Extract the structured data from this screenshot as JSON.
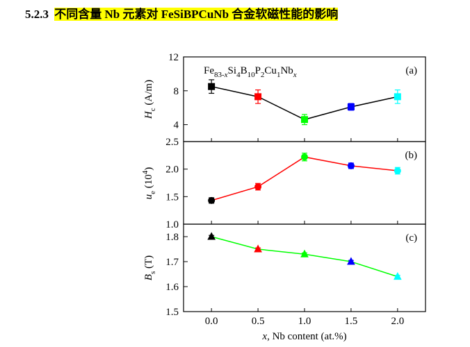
{
  "section": {
    "number": "5.2.3",
    "title": "不同含量 Nb 元素对 FeSiBPCuNb 合金软磁性能的影响"
  },
  "chart_data": {
    "type": "line",
    "composition": "Fe83-xSi4B10P2Cu1Nbx",
    "xlabel": "x, Nb content (at.%)",
    "x": [
      0.0,
      0.5,
      1.0,
      1.5,
      2.0
    ],
    "x_ticks": [
      "0.0",
      "0.5",
      "1.0",
      "1.5",
      "2.0"
    ],
    "xlim": [
      -0.3,
      2.3
    ],
    "point_colors": [
      "#000000",
      "#ff0000",
      "#00ff00",
      "#0000ff",
      "#00ffff"
    ],
    "panels": [
      {
        "label": "(a)",
        "ylabel": "Hc (A/m)",
        "ylim": [
          2,
          12
        ],
        "y_ticks": [
          "4",
          "8",
          "12"
        ],
        "marker": "square",
        "line_color": "#000000",
        "values": [
          8.5,
          7.3,
          4.6,
          6.1,
          7.3
        ],
        "errors": [
          0.8,
          0.8,
          0.6,
          0.4,
          0.8
        ]
      },
      {
        "label": "(b)",
        "ylabel": "ue (10^4)",
        "ylim": [
          1.0,
          2.5
        ],
        "y_ticks": [
          "1.0",
          "1.5",
          "2.0",
          "2.5"
        ],
        "marker": "circle",
        "line_color": "#ff0000",
        "values": [
          1.43,
          1.68,
          2.22,
          2.06,
          1.97
        ],
        "errors": [
          0.05,
          0.06,
          0.07,
          0.05,
          0.06
        ]
      },
      {
        "label": "(c)",
        "ylabel": "Bs (T)",
        "ylim": [
          1.5,
          1.85
        ],
        "y_ticks": [
          "1.5",
          "1.6",
          "1.7",
          "1.8"
        ],
        "marker": "triangle",
        "line_color": "#00ff00",
        "values": [
          1.8,
          1.75,
          1.73,
          1.7,
          1.64
        ],
        "errors": [
          0.005,
          0.005,
          0.005,
          0.005,
          0.005
        ]
      }
    ]
  }
}
